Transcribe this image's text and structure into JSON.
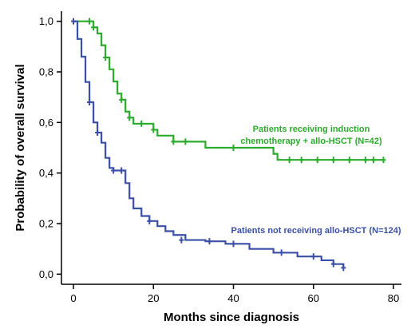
{
  "chart_data": {
    "type": "line",
    "step": true,
    "title": "",
    "xlabel": "Months since diagnosis",
    "ylabel": "Probability of overall survival",
    "xlim": [
      -3,
      82
    ],
    "ylim": [
      -0.04,
      1.04
    ],
    "xticks": [
      0,
      20,
      40,
      60,
      80
    ],
    "xtick_labels": [
      "0",
      "20",
      "40",
      "60",
      "80"
    ],
    "yticks": [
      0.0,
      0.2,
      0.4,
      0.6,
      0.8,
      1.0
    ],
    "ytick_labels": [
      "0,0",
      "0,2",
      "0,4",
      "0,6",
      "0,8",
      "1,0"
    ],
    "grid": false,
    "legend": "none",
    "series": [
      {
        "name": "",
        "color": "#2bab2b",
        "label_lines": [
          "Patients receiving induction",
          "chemotherapy + allo-HSCT (N=42)"
        ],
        "x": [
          0,
          4,
          5,
          6,
          7,
          8,
          9,
          10,
          11,
          12,
          13,
          14,
          15,
          20,
          21,
          25,
          33,
          50,
          51,
          77.5
        ],
        "y": [
          1.0,
          1.0,
          0.976,
          0.952,
          0.905,
          0.857,
          0.81,
          0.762,
          0.714,
          0.69,
          0.643,
          0.619,
          0.595,
          0.571,
          0.548,
          0.524,
          0.5,
          0.476,
          0.452,
          0.452
        ],
        "censor_x": [
          4,
          5,
          8,
          12,
          14,
          17,
          20,
          25,
          28,
          40,
          54,
          57,
          61,
          65,
          69,
          73,
          75,
          77.5
        ],
        "censor_y": [
          1.0,
          0.976,
          0.857,
          0.69,
          0.619,
          0.595,
          0.571,
          0.524,
          0.524,
          0.5,
          0.452,
          0.452,
          0.452,
          0.452,
          0.452,
          0.452,
          0.452,
          0.452
        ]
      },
      {
        "name": "",
        "color": "#3a4fa6",
        "label_lines": [
          "Patients not receiving allo-HSCT (N=124)"
        ],
        "x": [
          0,
          1,
          2,
          3,
          4,
          5,
          6,
          7,
          8,
          9,
          10,
          13,
          14,
          15,
          17,
          19,
          21,
          23,
          25,
          28,
          33,
          38,
          44,
          50,
          56,
          62,
          65,
          67.5
        ],
        "y": [
          1.0,
          0.93,
          0.86,
          0.76,
          0.68,
          0.6,
          0.56,
          0.52,
          0.46,
          0.42,
          0.41,
          0.36,
          0.3,
          0.26,
          0.23,
          0.21,
          0.19,
          0.17,
          0.155,
          0.135,
          0.13,
          0.12,
          0.1,
          0.085,
          0.07,
          0.055,
          0.04,
          0.025
        ],
        "censor_x": [
          0,
          4,
          6,
          10,
          12,
          19,
          27,
          34,
          40,
          52,
          60,
          65,
          67.5
        ],
        "censor_y": [
          1.0,
          0.68,
          0.56,
          0.41,
          0.41,
          0.21,
          0.135,
          0.13,
          0.12,
          0.085,
          0.07,
          0.04,
          0.025
        ]
      }
    ]
  }
}
